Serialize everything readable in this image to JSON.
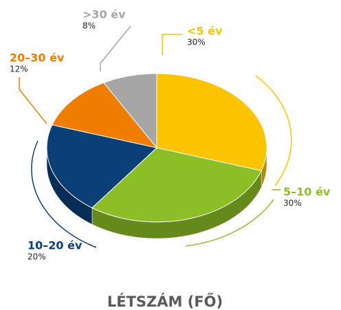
{
  "chart_data": {
    "type": "pie",
    "title": "LÉTSZÁM (FŐ)",
    "categories": [
      "<5 év",
      "5–10 év",
      "10–20 év",
      "20–30 év",
      ">30 év"
    ],
    "values": [
      30,
      30,
      20,
      12,
      8
    ],
    "value_labels": [
      "30%",
      "30%",
      "20%",
      "12%",
      "8%"
    ],
    "colors": [
      "#fcc400",
      "#8cbf26",
      "#0a3f78",
      "#ee7d00",
      "#a6a6a6"
    ]
  }
}
